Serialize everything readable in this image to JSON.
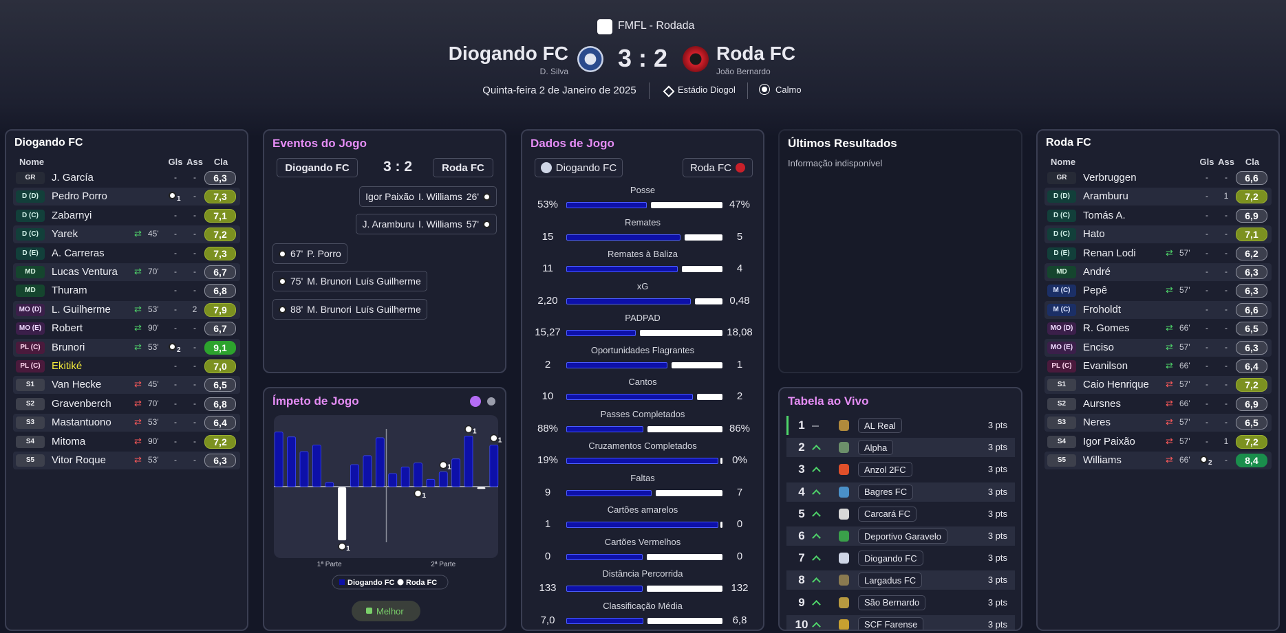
{
  "header": {
    "competition": "FMFL - Rodada",
    "home_team": "Diogando FC",
    "home_manager": "D. Silva",
    "score": "3 : 2",
    "away_team": "Roda FC",
    "away_manager": "João Bernardo",
    "date": "Quinta-feira 2 de Janeiro de 2025",
    "stadium": "Estádio Diogol",
    "weather": "Calmo"
  },
  "home_lineup": {
    "title": "Diogando FC",
    "columns": [
      "Nome",
      "Gls",
      "Ass",
      "Cla"
    ],
    "players": [
      {
        "pos": "GR",
        "name": "J. García",
        "goals": "-",
        "assists": "-",
        "rating": 6.3,
        "rating_label": "6,3"
      },
      {
        "pos": "D (D)",
        "name": "Pedro Porro",
        "goals": 1,
        "assists": "-",
        "rating": 7.3,
        "rating_label": "7,3"
      },
      {
        "pos": "D (C)",
        "name": "Zabarnyi",
        "goals": "-",
        "assists": "-",
        "rating": 7.1,
        "rating_label": "7,1"
      },
      {
        "pos": "D (C)",
        "name": "Yarek",
        "sub": "45'",
        "goals": "-",
        "assists": "-",
        "rating": 7.2,
        "rating_label": "7,2"
      },
      {
        "pos": "D (E)",
        "name": "A. Carreras",
        "goals": "-",
        "assists": "-",
        "rating": 7.3,
        "rating_label": "7,3"
      },
      {
        "pos": "MD",
        "name": "Lucas Ventura",
        "sub": "70'",
        "goals": "-",
        "assists": "-",
        "rating": 6.7,
        "rating_label": "6,7"
      },
      {
        "pos": "MD",
        "name": "Thuram",
        "goals": "-",
        "assists": "-",
        "rating": 6.8,
        "rating_label": "6,8"
      },
      {
        "pos": "MO (D)",
        "name": "L. Guilherme",
        "sub": "53'",
        "goals": "-",
        "assists": 2,
        "rating": 7.9,
        "rating_label": "7,9"
      },
      {
        "pos": "MO (E)",
        "name": "Robert",
        "sub": "90'",
        "goals": "-",
        "assists": "-",
        "rating": 6.7,
        "rating_label": "6,7"
      },
      {
        "pos": "PL (C)",
        "name": "Brunori",
        "sub": "53'",
        "goals": 2,
        "assists": "-",
        "rating": 9.1,
        "rating_label": "9,1"
      },
      {
        "pos": "PL (C)",
        "name": "Ekitiké",
        "name_color": "#f2e93a",
        "goals": "-",
        "assists": "-",
        "rating": 7.0,
        "rating_label": "7,0"
      },
      {
        "pos": "S1",
        "name": "Van Hecke",
        "sub": "45'",
        "goals": "-",
        "assists": "-",
        "rating": 6.5,
        "rating_label": "6,5"
      },
      {
        "pos": "S2",
        "name": "Gravenberch",
        "sub": "70'",
        "goals": "-",
        "assists": "-",
        "rating": 6.8,
        "rating_label": "6,8"
      },
      {
        "pos": "S3",
        "name": "Mastantuono",
        "sub": "53'",
        "goals": "-",
        "assists": "-",
        "rating": 6.4,
        "rating_label": "6,4"
      },
      {
        "pos": "S4",
        "name": "Mitoma",
        "sub": "90'",
        "goals": "-",
        "assists": "-",
        "rating": 7.2,
        "rating_label": "7,2"
      },
      {
        "pos": "S5",
        "name": "Vitor Roque",
        "sub": "53'",
        "goals": "-",
        "assists": "-",
        "rating": 6.3,
        "rating_label": "6,3"
      }
    ]
  },
  "away_lineup": {
    "title": "Roda FC",
    "columns": [
      "Nome",
      "Gls",
      "Ass",
      "Cla"
    ],
    "players": [
      {
        "pos": "GR",
        "name": "Verbruggen",
        "goals": "-",
        "assists": "-",
        "rating": 6.6,
        "rating_label": "6,6"
      },
      {
        "pos": "D (D)",
        "name": "Aramburu",
        "goals": "-",
        "assists": 1,
        "rating": 7.2,
        "rating_label": "7,2"
      },
      {
        "pos": "D (C)",
        "name": "Tomás A.",
        "goals": "-",
        "assists": "-",
        "rating": 6.9,
        "rating_label": "6,9"
      },
      {
        "pos": "D (C)",
        "name": "Hato",
        "goals": "-",
        "assists": "-",
        "rating": 7.1,
        "rating_label": "7,1"
      },
      {
        "pos": "D (E)",
        "name": "Renan Lodi",
        "sub": "57'",
        "goals": "-",
        "assists": "-",
        "rating": 6.2,
        "rating_label": "6,2"
      },
      {
        "pos": "MD",
        "name": "André",
        "goals": "-",
        "assists": "-",
        "rating": 6.3,
        "rating_label": "6,3"
      },
      {
        "pos": "M (C)",
        "name": "Pepê",
        "sub": "57'",
        "goals": "-",
        "assists": "-",
        "rating": 6.3,
        "rating_label": "6,3"
      },
      {
        "pos": "M (C)",
        "name": "Froholdt",
        "goals": "-",
        "assists": "-",
        "rating": 6.6,
        "rating_label": "6,6"
      },
      {
        "pos": "MO (D)",
        "name": "R. Gomes",
        "sub": "66'",
        "goals": "-",
        "assists": "-",
        "rating": 6.5,
        "rating_label": "6,5"
      },
      {
        "pos": "MO (E)",
        "name": "Enciso",
        "sub": "57'",
        "goals": "-",
        "assists": "-",
        "rating": 6.3,
        "rating_label": "6,3"
      },
      {
        "pos": "PL (C)",
        "name": "Evanilson",
        "sub": "66'",
        "goals": "-",
        "assists": "-",
        "rating": 6.4,
        "rating_label": "6,4"
      },
      {
        "pos": "S1",
        "name": "Caio Henrique",
        "sub": "57'",
        "goals": "-",
        "assists": "-",
        "rating": 7.2,
        "rating_label": "7,2"
      },
      {
        "pos": "S2",
        "name": "Aursnes",
        "sub": "66'",
        "goals": "-",
        "assists": "-",
        "rating": 6.9,
        "rating_label": "6,9"
      },
      {
        "pos": "S3",
        "name": "Neres",
        "sub": "57'",
        "goals": "-",
        "assists": "-",
        "rating": 6.5,
        "rating_label": "6,5"
      },
      {
        "pos": "S4",
        "name": "Igor Paixão",
        "sub": "57'",
        "goals": "-",
        "assists": 1,
        "rating": 7.2,
        "rating_label": "7,2"
      },
      {
        "pos": "S5",
        "name": "Williams",
        "sub": "66'",
        "goals": 2,
        "assists": "-",
        "rating": 8.4,
        "rating_label": "8,4"
      }
    ]
  },
  "events": {
    "title": "Eventos do Jogo",
    "home_team": "Diogando FC",
    "score": "3 : 2",
    "away_team": "Roda FC",
    "items": [
      {
        "side": "away",
        "assist": "Igor Paixão",
        "scorer": "I. Williams",
        "minute": "26'"
      },
      {
        "side": "away",
        "assist": "J. Aramburu",
        "scorer": "I. Williams",
        "minute": "57'"
      },
      {
        "side": "home",
        "minute": "67'",
        "scorer": "P. Porro"
      },
      {
        "side": "home",
        "minute": "75'",
        "scorer": "M. Brunori",
        "assist": "Luís Guilherme"
      },
      {
        "side": "home",
        "minute": "88'",
        "scorer": "M. Brunori",
        "assist": "Luís Guilherme"
      }
    ]
  },
  "match_stats": {
    "title": "Dados de Jogo",
    "home_team": "Diogando FC",
    "away_team": "Roda FC",
    "home_color": "#0d10a8",
    "away_color": "#ffffff",
    "rows": [
      {
        "name": "Posse",
        "home": 53,
        "home_label": "53%",
        "away": 47,
        "away_label": "47%"
      },
      {
        "name": "Remates",
        "home": 15,
        "away": 5
      },
      {
        "name": "Remates à Baliza",
        "home": 11,
        "away": 4
      },
      {
        "name": "xG",
        "home": 2.2,
        "home_label": "2,20",
        "away": 0.48,
        "away_label": "0,48"
      },
      {
        "name": "PADPAD",
        "home": 15.27,
        "home_label": "15,27",
        "away": 18.08,
        "away_label": "18,08"
      },
      {
        "name": "Oportunidades Flagrantes",
        "home": 2,
        "away": 1
      },
      {
        "name": "Cantos",
        "home": 10,
        "away": 2
      },
      {
        "name": "Passes Completados",
        "home": 88,
        "home_label": "88%",
        "away": 86,
        "away_label": "86%"
      },
      {
        "name": "Cruzamentos Completados",
        "home": 19,
        "home_label": "19%",
        "away": 0,
        "away_label": "0%"
      },
      {
        "name": "Faltas",
        "home": 9,
        "away": 7
      },
      {
        "name": "Cartões amarelos",
        "home": 1,
        "away": 0
      },
      {
        "name": "Cartões Vermelhos",
        "home": 0,
        "away": 0
      },
      {
        "name": "Distância Percorrida",
        "home": 133,
        "away": 132
      },
      {
        "name": "Classificação Média",
        "home": 7.0,
        "home_label": "7,0",
        "away": 6.8,
        "away_label": "6,8"
      }
    ]
  },
  "recent_results": {
    "title": "Últimos Resultados",
    "message": "Informação indisponível"
  },
  "live_table": {
    "title": "Tabela ao Vivo",
    "rows": [
      {
        "position": 1,
        "trend": "same",
        "team": "AL Real",
        "points": 3,
        "points_label": "3 pts"
      },
      {
        "position": 2,
        "trend": "up",
        "team": "Alpha",
        "points": 3,
        "points_label": "3 pts"
      },
      {
        "position": 3,
        "trend": "up",
        "team": "Anzol 2FC",
        "points": 3,
        "points_label": "3 pts"
      },
      {
        "position": 4,
        "trend": "up",
        "team": "Bagres FC",
        "points": 3,
        "points_label": "3 pts"
      },
      {
        "position": 5,
        "trend": "up",
        "team": "Carcará FC",
        "points": 3,
        "points_label": "3 pts"
      },
      {
        "position": 6,
        "trend": "up",
        "team": "Deportivo Garavelo",
        "points": 3,
        "points_label": "3 pts"
      },
      {
        "position": 7,
        "trend": "up",
        "team": "Diogando FC",
        "points": 3,
        "points_label": "3 pts"
      },
      {
        "position": 8,
        "trend": "up",
        "team": "Largadus FC",
        "points": 3,
        "points_label": "3 pts"
      },
      {
        "position": 9,
        "trend": "up",
        "team": "São Bernardo",
        "points": 3,
        "points_label": "3 pts"
      },
      {
        "position": 10,
        "trend": "up",
        "team": "SCF Farense",
        "points": 3,
        "points_label": "3 pts"
      }
    ]
  },
  "chart_data": {
    "type": "bar",
    "title": "Ímpeto de Jogo",
    "categories": [
      null,
      null,
      null,
      null,
      null,
      null,
      null,
      null,
      null,
      null,
      null,
      null,
      null,
      null,
      null,
      null,
      null,
      null
    ],
    "series": [
      {
        "name": "Diogando FC",
        "color": "#0d10a8",
        "values": [
          67,
          61,
          43,
          51,
          5,
          0,
          27,
          38,
          60,
          16,
          24,
          29,
          9,
          18,
          34,
          62,
          0,
          51
        ]
      },
      {
        "name": "Roda FC",
        "color": "#ffffff",
        "values": [
          0,
          0,
          0,
          0,
          0,
          65,
          0,
          0,
          0,
          0,
          0,
          0,
          0,
          0,
          0,
          0,
          2,
          0
        ]
      }
    ],
    "ylim": [
      0,
      70
    ],
    "period_labels": [
      "1ª Parte",
      "2ª Parte"
    ],
    "annotations": [
      {
        "series": 1,
        "index": 5,
        "text": "1"
      },
      {
        "series": 1,
        "index": 11,
        "text": "1"
      },
      {
        "series": 0,
        "index": 13,
        "text": "1"
      },
      {
        "series": 0,
        "index": 15,
        "text": "1"
      },
      {
        "series": 0,
        "index": 17,
        "text": "1"
      }
    ],
    "button": "Melhor"
  }
}
